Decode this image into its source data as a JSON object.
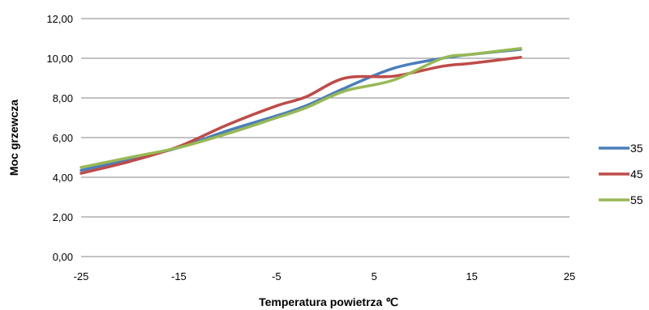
{
  "chart_data": {
    "type": "line",
    "title": "",
    "xlabel": "Temperatura powietrza ℃",
    "ylabel": "Moc grzewcza",
    "xlim": [
      -25,
      25
    ],
    "ylim": [
      0,
      12
    ],
    "x_ticks": [
      -25,
      -15,
      -5,
      5,
      15,
      25
    ],
    "x_tick_labels": [
      "-25",
      "-15",
      "-5",
      "5",
      "15",
      "25"
    ],
    "y_ticks": [
      0,
      2,
      4,
      6,
      8,
      10,
      12
    ],
    "y_tick_labels": [
      "0,00",
      "2,00",
      "4,00",
      "6,00",
      "8,00",
      "10,00",
      "12,00"
    ],
    "grid": "horizontal",
    "legend_position": "right",
    "x": [
      -25,
      -20,
      -15,
      -10,
      -5,
      -2,
      2,
      7,
      12,
      15,
      20
    ],
    "series": [
      {
        "name": "35",
        "color": "#4a7ebb",
        "values": [
          4.35,
          4.9,
          5.5,
          6.35,
          7.1,
          7.6,
          8.5,
          9.5,
          10.0,
          10.2,
          10.45
        ]
      },
      {
        "name": "45",
        "color": "#be4b48",
        "values": [
          4.2,
          4.8,
          5.55,
          6.65,
          7.6,
          8.05,
          9.0,
          9.1,
          9.6,
          9.75,
          10.05
        ]
      },
      {
        "name": "55",
        "color": "#98b954",
        "values": [
          4.5,
          5.0,
          5.5,
          6.2,
          7.0,
          7.5,
          8.35,
          8.9,
          10.0,
          10.2,
          10.5
        ]
      }
    ]
  }
}
